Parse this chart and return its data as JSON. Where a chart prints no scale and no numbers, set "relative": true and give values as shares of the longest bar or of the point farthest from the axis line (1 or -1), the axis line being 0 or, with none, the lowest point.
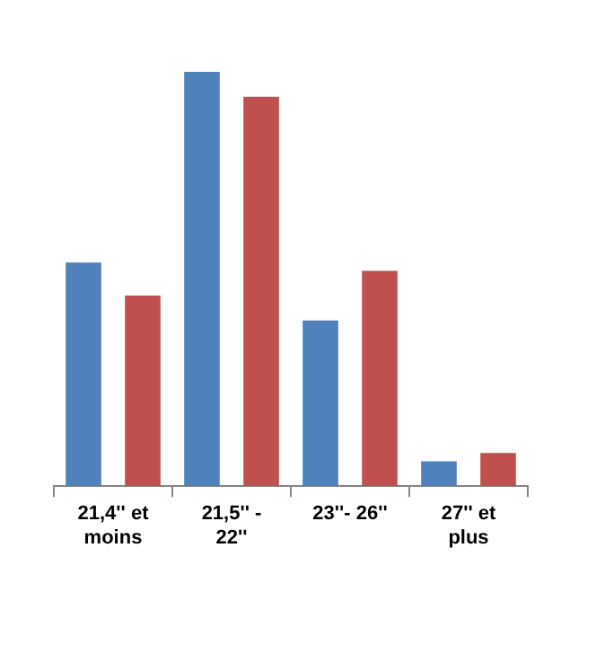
{
  "chart_data": {
    "type": "bar",
    "relative": true,
    "categories": [
      "21,4'' et moins",
      "21,5'' - 22''",
      "23''- 26''",
      "27'' et plus"
    ],
    "series": [
      {
        "color": "#4f81bd",
        "values": [
          0.54,
          1,
          0.4,
          0.06
        ]
      },
      {
        "color": "#c0504d",
        "values": [
          0.46,
          0.94,
          0.52,
          0.08
        ]
      }
    ],
    "grid": false,
    "legend": false
  }
}
